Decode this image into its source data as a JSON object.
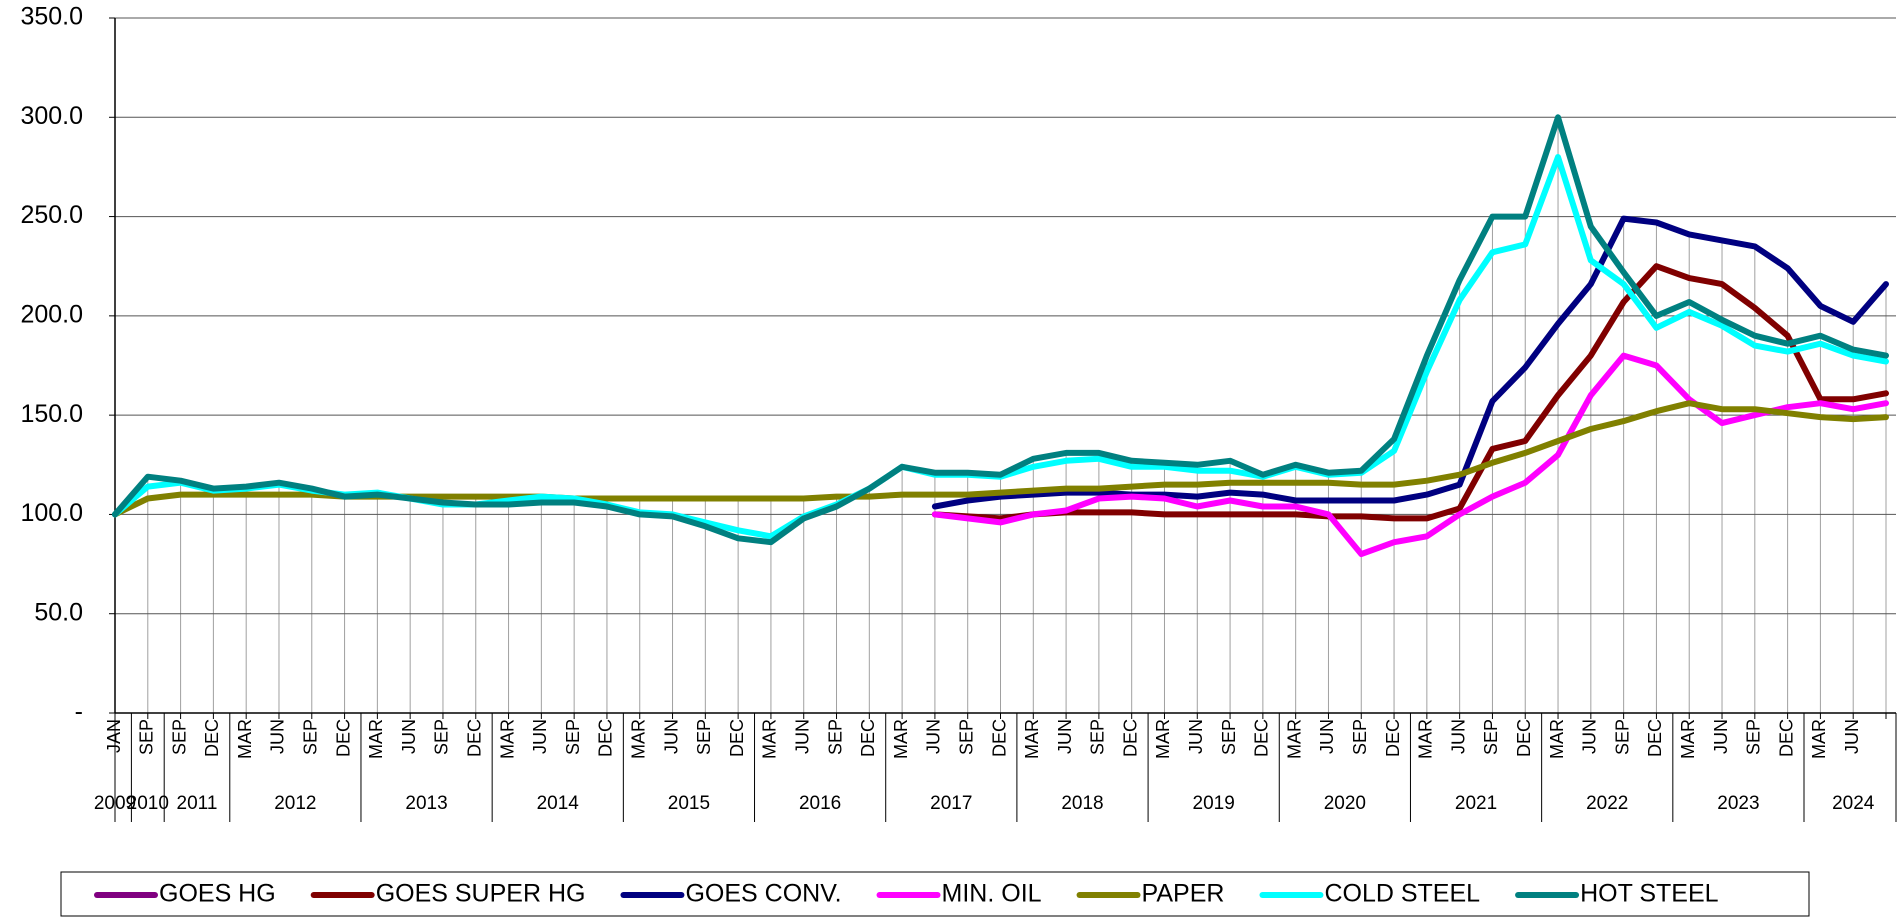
{
  "chart_data": {
    "type": "line",
    "categories": [
      "JAN",
      "SEP",
      "SEP",
      "DEC",
      "MAR",
      "JUN",
      "SEP",
      "DEC",
      "MAR",
      "JUN",
      "SEP",
      "DEC",
      "MAR",
      "JUN",
      "SEP",
      "DEC",
      "MAR",
      "JUN",
      "SEP",
      "DEC",
      "MAR",
      "JUN",
      "SEP",
      "DEC",
      "MAR",
      "JUN",
      "SEP",
      "DEC",
      "MAR",
      "JUN",
      "SEP",
      "DEC",
      "MAR",
      "JUN",
      "SEP",
      "DEC",
      "MAR",
      "JUN",
      "SEP",
      "DEC",
      "MAR",
      "JUN",
      "SEP",
      "DEC",
      "MAR",
      "JUN",
      "SEP",
      "DEC",
      "MAR",
      "JUN",
      "SEP",
      "DEC",
      "MAR",
      "JUN",
      null
    ],
    "category_years": [
      "2009",
      "2010",
      "2011",
      "2011",
      "2012",
      "2012",
      "2012",
      "2012",
      "2013",
      "2013",
      "2013",
      "2013",
      "2014",
      "2014",
      "2014",
      "2014",
      "2015",
      "2015",
      "2015",
      "2015",
      "2016",
      "2016",
      "2016",
      "2016",
      "2017",
      "2017",
      "2017",
      "2017",
      "2018",
      "2018",
      "2018",
      "2018",
      "2019",
      "2019",
      "2019",
      "2019",
      "2020",
      "2020",
      "2020",
      "2020",
      "2021",
      "2021",
      "2021",
      "2021",
      "2022",
      "2022",
      "2022",
      "2022",
      "2023",
      "2023",
      "2023",
      "2023",
      "2024",
      "2024",
      "2024"
    ],
    "series": [
      {
        "name": "GOES HG",
        "color": "#800080",
        "values": [
          null,
          null,
          null,
          null,
          null,
          null,
          null,
          null,
          null,
          null,
          null,
          null,
          null,
          null,
          null,
          null,
          null,
          null,
          null,
          null,
          null,
          null,
          null,
          null,
          null,
          null,
          null,
          null,
          null,
          null,
          null,
          null,
          null,
          null,
          null,
          null,
          null,
          null,
          null,
          null,
          null,
          null,
          null,
          null,
          null,
          null,
          null,
          null,
          null,
          null,
          null,
          null,
          null,
          null,
          null
        ]
      },
      {
        "name": "GOES SUPER HG",
        "color": "#800000",
        "values": [
          null,
          null,
          null,
          null,
          null,
          null,
          null,
          null,
          null,
          null,
          null,
          null,
          null,
          null,
          null,
          null,
          null,
          null,
          null,
          null,
          null,
          null,
          null,
          null,
          null,
          100,
          99,
          98,
          100,
          101,
          101,
          101,
          100,
          100,
          100,
          100,
          100,
          99,
          99,
          98,
          98,
          103,
          133,
          137,
          160,
          180,
          207,
          225,
          219,
          216,
          204,
          190,
          158,
          158,
          161
        ]
      },
      {
        "name": "GOES CONV.",
        "color": "#000080",
        "values": [
          null,
          null,
          null,
          null,
          null,
          null,
          null,
          null,
          null,
          null,
          null,
          null,
          null,
          null,
          null,
          null,
          null,
          null,
          null,
          null,
          null,
          null,
          null,
          null,
          null,
          104,
          107,
          109,
          110,
          111,
          111,
          110,
          110,
          109,
          111,
          110,
          107,
          107,
          107,
          107,
          110,
          115,
          157,
          174,
          196,
          216,
          249,
          247,
          241,
          238,
          235,
          224,
          205,
          197,
          216
        ]
      },
      {
        "name": "MIN. OIL",
        "color": "#ff00ff",
        "values": [
          null,
          null,
          null,
          null,
          null,
          null,
          null,
          null,
          null,
          null,
          null,
          null,
          null,
          null,
          null,
          null,
          null,
          null,
          null,
          null,
          null,
          null,
          null,
          null,
          null,
          100,
          98,
          96,
          100,
          102,
          108,
          109,
          108,
          104,
          107,
          104,
          104,
          100,
          80,
          86,
          89,
          100,
          109,
          116,
          130,
          160,
          180,
          175,
          158,
          146,
          150,
          154,
          156,
          153,
          156
        ]
      },
      {
        "name": "PAPER",
        "color": "#808000",
        "values": [
          100,
          108,
          110,
          110,
          110,
          110,
          110,
          109,
          109,
          109,
          109,
          109,
          109,
          109,
          108,
          108,
          108,
          108,
          108,
          108,
          108,
          108,
          109,
          109,
          110,
          110,
          110,
          111,
          112,
          113,
          113,
          114,
          115,
          115,
          116,
          116,
          116,
          116,
          115,
          115,
          117,
          120,
          126,
          131,
          137,
          143,
          147,
          152,
          156,
          153,
          153,
          151,
          149,
          148,
          149
        ]
      },
      {
        "name": "COLD STEEL",
        "color": "#00ffff",
        "values": [
          100,
          114,
          116,
          112,
          113,
          115,
          112,
          110,
          111,
          108,
          105,
          105,
          107,
          109,
          108,
          105,
          101,
          100,
          96,
          92,
          89,
          99,
          105,
          113,
          124,
          120,
          120,
          119,
          124,
          127,
          128,
          124,
          124,
          122,
          122,
          119,
          124,
          120,
          121,
          132,
          172,
          208,
          232,
          236,
          280,
          228,
          216,
          194,
          202,
          195,
          185,
          182,
          186,
          180,
          177
        ]
      },
      {
        "name": "HOT STEEL",
        "color": "#008080",
        "values": [
          100,
          119,
          117,
          113,
          114,
          116,
          113,
          109,
          110,
          108,
          106,
          105,
          105,
          106,
          106,
          104,
          100,
          99,
          94,
          88,
          86,
          98,
          104,
          113,
          124,
          121,
          121,
          120,
          128,
          131,
          131,
          127,
          126,
          125,
          127,
          120,
          125,
          121,
          122,
          138,
          180,
          218,
          250,
          250,
          300,
          245,
          222,
          200,
          207,
          198,
          190,
          186,
          190,
          183,
          180
        ]
      }
    ],
    "ylim": [
      0,
      350
    ],
    "yticks": [
      {
        "value": 0,
        "label": "-"
      },
      {
        "value": 50,
        "label": "50.0"
      },
      {
        "value": 100,
        "label": "100.0"
      },
      {
        "value": 150,
        "label": "150.0"
      },
      {
        "value": 200,
        "label": "200.0"
      },
      {
        "value": 250,
        "label": "250.0"
      },
      {
        "value": 300,
        "label": "300.0"
      },
      {
        "value": 350,
        "label": "350.0"
      }
    ],
    "grid": true,
    "legend": "bottom"
  }
}
